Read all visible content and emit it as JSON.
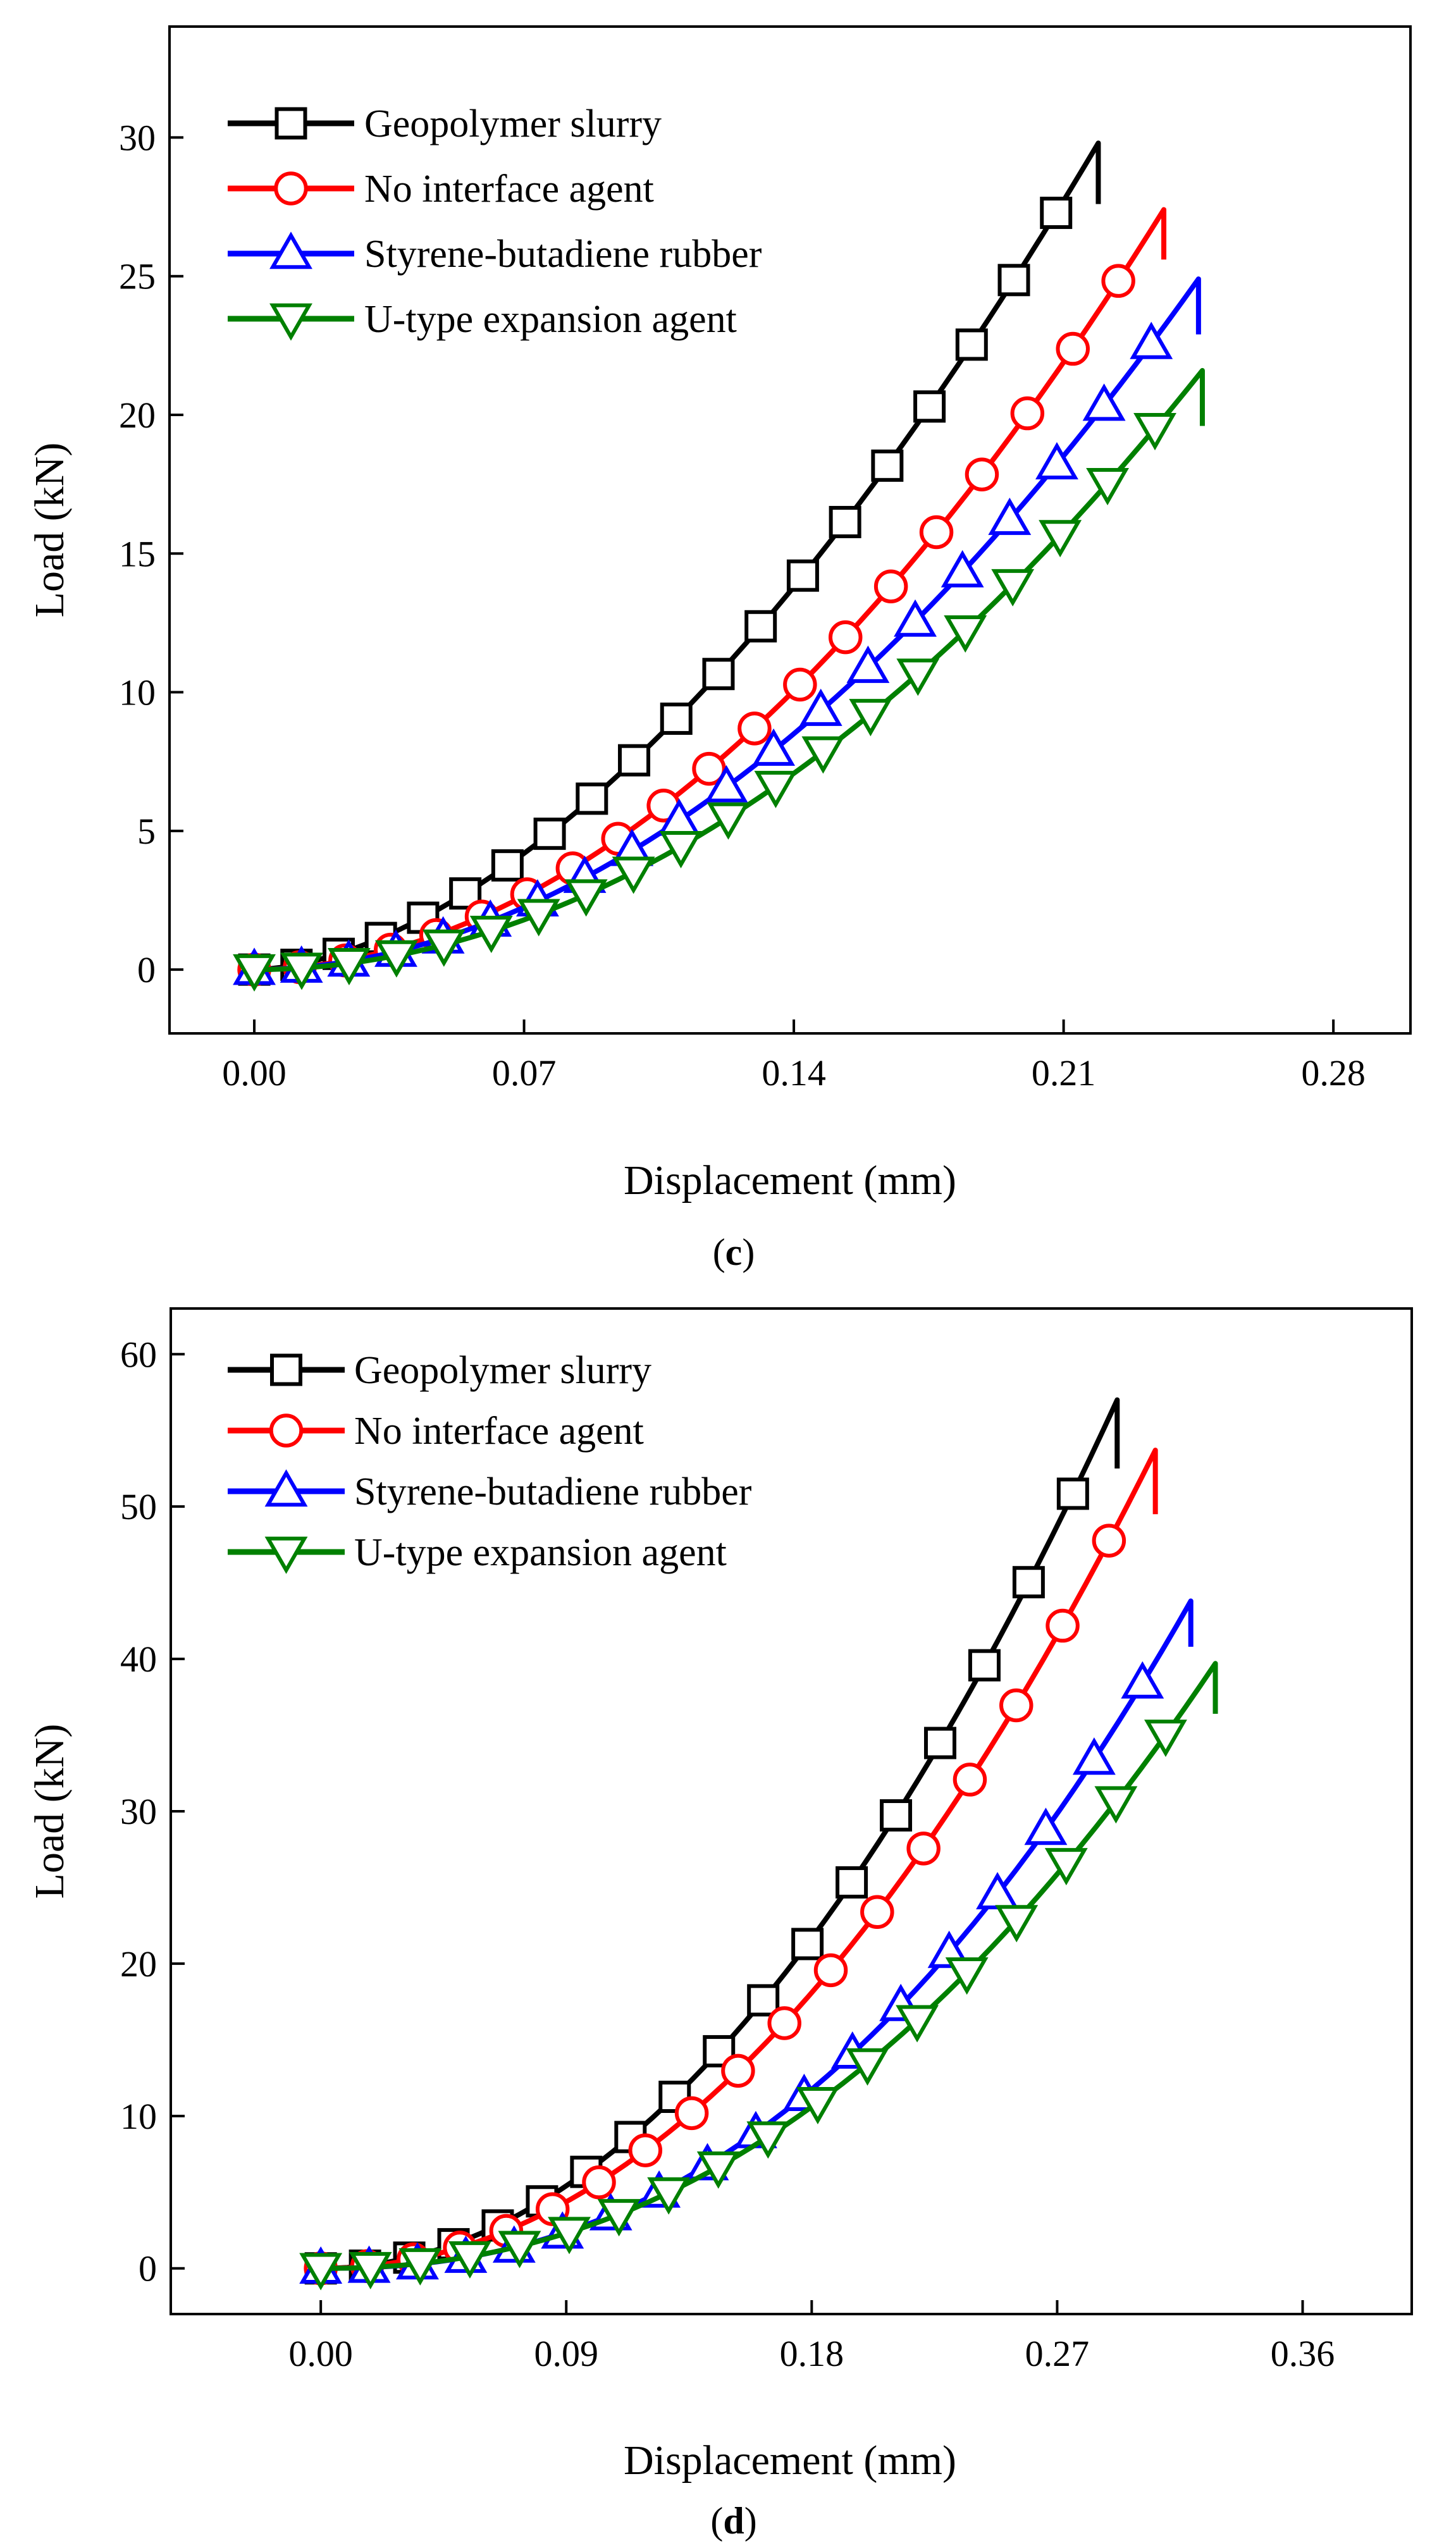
{
  "chart_data": [
    {
      "type": "line",
      "panel_label": "c",
      "xlabel": "Displacement (mm)",
      "ylabel": "Load (kN)",
      "xlim": [
        -0.022,
        0.3
      ],
      "ylim": [
        -2.3,
        34
      ],
      "xticks": [
        0.0,
        0.07,
        0.14,
        0.21,
        0.28
      ],
      "xtick_labels": [
        "0.00",
        "0.07",
        "0.14",
        "0.21",
        "0.28"
      ],
      "yticks": [
        0,
        5,
        10,
        15,
        20,
        25,
        30
      ],
      "ytick_labels": [
        "0",
        "5",
        "10",
        "15",
        "20",
        "25",
        "30"
      ],
      "grid": false,
      "legend_position": "top-left",
      "series": [
        {
          "name": "Geopolymer slurry",
          "color": "#000000",
          "marker": "square",
          "x_end": 0.219,
          "y_end": 29.8,
          "drop_to": 27.6,
          "exponent": 1.72,
          "n_markers": 20
        },
        {
          "name": "No interface agent",
          "color": "#ff0000",
          "marker": "circle",
          "x_end": 0.236,
          "y_end": 27.4,
          "drop_to": 25.6,
          "exponent": 1.92,
          "n_markers": 20
        },
        {
          "name": "Styrene-butadiene rubber",
          "color": "#0000ff",
          "marker": "triangle-up",
          "x_end": 0.245,
          "y_end": 24.9,
          "drop_to": 22.9,
          "exponent": 1.92,
          "n_markers": 20
        },
        {
          "name": "U-type expansion agent",
          "color": "#008000",
          "marker": "triangle-down",
          "x_end": 0.246,
          "y_end": 21.6,
          "drop_to": 19.6,
          "exponent": 1.98,
          "n_markers": 20
        }
      ]
    },
    {
      "type": "line",
      "panel_label": "d",
      "xlabel": "Displacement (mm)",
      "ylabel": "Load (kN)",
      "xlim": [
        -0.055,
        0.4
      ],
      "ylim": [
        -3,
        63
      ],
      "xticks": [
        0.0,
        0.09,
        0.18,
        0.27,
        0.36
      ],
      "xtick_labels": [
        "0.00",
        "0.09",
        "0.18",
        "0.27",
        "0.36"
      ],
      "yticks": [
        0,
        10,
        20,
        30,
        40,
        50,
        60
      ],
      "ytick_labels": [
        "0",
        "10",
        "20",
        "30",
        "40",
        "50",
        "60"
      ],
      "grid": false,
      "legend_position": "top-left",
      "series": [
        {
          "name": "Geopolymer slurry",
          "color": "#000000",
          "marker": "square",
          "x_end": 0.292,
          "y_end": 57.0,
          "drop_to": 52.5,
          "exponent": 2.0,
          "n_markers": 18
        },
        {
          "name": "No interface agent",
          "color": "#ff0000",
          "marker": "circle",
          "x_end": 0.306,
          "y_end": 53.7,
          "drop_to": 49.5,
          "exponent": 2.05,
          "n_markers": 18
        },
        {
          "name": "Styrene-butadiene rubber",
          "color": "#0000ff",
          "marker": "triangle-up",
          "x_end": 0.319,
          "y_end": 43.8,
          "drop_to": 40.8,
          "exponent": 2.3,
          "n_markers": 18
        },
        {
          "name": "U-type expansion agent",
          "color": "#008000",
          "marker": "triangle-down",
          "x_end": 0.328,
          "y_end": 39.7,
          "drop_to": 36.4,
          "exponent": 2.2,
          "n_markers": 18
        }
      ]
    }
  ]
}
